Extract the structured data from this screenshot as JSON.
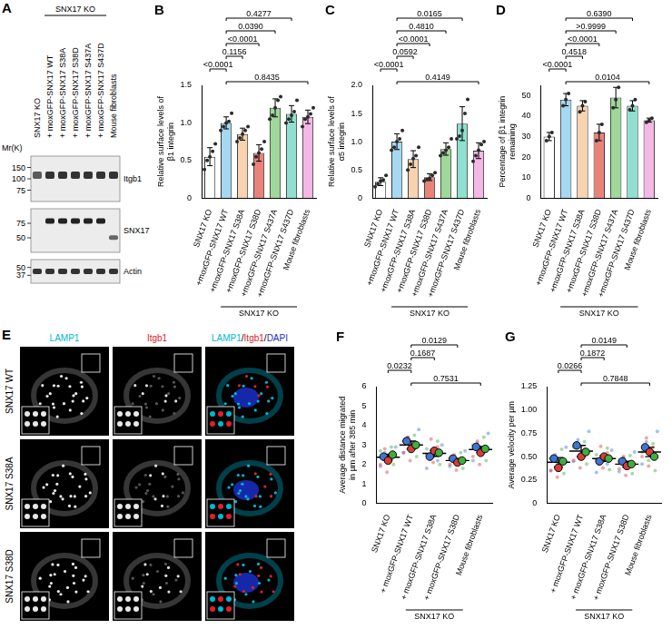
{
  "blot": {
    "panel": "A",
    "header": "SNX17 KO",
    "header_lanes": [
      1,
      5
    ],
    "lanes": [
      "SNX17 KO",
      "+ moxGFP-SNX17 WT",
      "+ moxGFP-SNX17 S38A",
      "+ moxGFP-SNX17 S38D",
      "+ moxGFP-SNX17 S437A",
      "+ moxGFP-SNX17 S437D",
      "Mouse fibroblasts"
    ],
    "mw_label": "Mr(K)",
    "rows": [
      {
        "label": "Itgb1",
        "markers": [
          150,
          100,
          75
        ]
      },
      {
        "label": "SNX17",
        "markers": [
          75,
          50
        ]
      },
      {
        "label": "Actin",
        "markers": [
          50,
          37
        ]
      }
    ]
  },
  "chart_data": [
    {
      "panel": "B",
      "type": "bar",
      "y_label": "Relative surface levels of β1 integrin",
      "categories": [
        "SNX17 KO",
        "+moxGFP-SNX17 WT",
        "+moxGFP-SNX17 S38A",
        "+moxGFP-SNX17 S38D",
        "+moxGFP-SNX17 S437A",
        "+moxGFP-SNX17 S437D",
        "Mouse fibroblasts"
      ],
      "colors": [
        "#ffffff",
        "#a6d8f2",
        "#f7d3b0",
        "#e8837a",
        "#9fd89a",
        "#8fe0cf",
        "#f3b8e6"
      ],
      "values": [
        0.55,
        1.0,
        0.85,
        0.6,
        1.2,
        1.12,
        1.08
      ],
      "error": [
        0.12,
        0.08,
        0.08,
        0.11,
        0.12,
        0.11,
        0.09
      ],
      "points": [
        [
          0.38,
          0.5,
          0.55,
          0.62,
          0.72
        ],
        [
          0.9,
          0.95,
          1.0,
          1.02,
          1.13
        ],
        [
          0.75,
          0.8,
          0.85,
          0.9,
          0.95
        ],
        [
          0.45,
          0.55,
          0.6,
          0.65,
          0.75
        ],
        [
          1.05,
          1.1,
          1.2,
          1.3,
          1.35
        ],
        [
          1.0,
          1.05,
          1.1,
          1.15,
          1.3
        ],
        [
          0.95,
          1.05,
          1.08,
          1.12,
          1.2
        ]
      ],
      "ylim": [
        0,
        1.5
      ],
      "yticks": [
        0,
        0.5,
        {
          "value": 1,
          "label": "1.0"
        },
        1.5
      ],
      "grid": false,
      "group": {
        "label": "SNX17 KO",
        "from": 1,
        "to": 5
      },
      "comparisons": [
        {
          "from": 1,
          "to": 6,
          "label": "0.8435"
        },
        {
          "from": 0,
          "to": 1,
          "label": "<0.0001"
        },
        {
          "from": 1,
          "to": 2,
          "label": "0.1156"
        },
        {
          "from": 1,
          "to": 3,
          "label": "<0.0001"
        },
        {
          "from": 1,
          "to": 4,
          "label": "0.0390"
        },
        {
          "from": 1,
          "to": 5,
          "label": "0.4277"
        }
      ]
    },
    {
      "panel": "C",
      "type": "bar",
      "y_label": "Relative surface levels of α5 integrin",
      "categories": [
        "SNX17 KO",
        "+moxGFP-SNX17 WT",
        "+moxGFP-SNX17 S38A",
        "+moxGFP-SNX17 S38D",
        "+moxGFP-SNX17 S437A",
        "+moxGFP-SNX17 S437D",
        "Mouse fibroblasts"
      ],
      "colors": [
        "#ffffff",
        "#a6d8f2",
        "#f7d3b0",
        "#e8837a",
        "#9fd89a",
        "#8fe0cf",
        "#f3b8e6"
      ],
      "values": [
        0.29,
        1.0,
        0.69,
        0.37,
        0.87,
        1.32,
        0.84
      ],
      "error": [
        0.07,
        0.14,
        0.15,
        0.06,
        0.11,
        0.3,
        0.14
      ],
      "points": [
        [
          0.2,
          0.25,
          0.3,
          0.32,
          0.4
        ],
        [
          0.85,
          0.9,
          1.0,
          1.05,
          1.2
        ],
        [
          0.5,
          0.6,
          0.7,
          0.75,
          0.9
        ],
        [
          0.3,
          0.33,
          0.35,
          0.4,
          0.45
        ],
        [
          0.75,
          0.8,
          0.85,
          0.9,
          1.05
        ],
        [
          1.05,
          1.1,
          1.2,
          1.5,
          1.75
        ],
        [
          0.65,
          0.75,
          0.85,
          0.95,
          1.0
        ]
      ],
      "ylim": [
        0,
        2
      ],
      "yticks": [
        0,
        0.5,
        {
          "value": 1,
          "label": "1.0"
        },
        1.5,
        {
          "value": 2,
          "label": "2.0"
        }
      ],
      "grid": false,
      "group": {
        "label": "SNX17 KO",
        "from": 1,
        "to": 5
      },
      "comparisons": [
        {
          "from": 1,
          "to": 6,
          "label": "0.4149"
        },
        {
          "from": 0,
          "to": 1,
          "label": "<0.0001"
        },
        {
          "from": 1,
          "to": 2,
          "label": "0.0592"
        },
        {
          "from": 1,
          "to": 3,
          "label": "<0.0001"
        },
        {
          "from": 1,
          "to": 4,
          "label": "0.4810"
        },
        {
          "from": 1,
          "to": 5,
          "label": "0.0165"
        }
      ]
    },
    {
      "panel": "D",
      "type": "bar",
      "y_label": "Percentage of β1 integrin remaining",
      "categories": [
        "SNX17 KO",
        "+moxGFP-SNX17 WT",
        "+moxGFP-SNX17 S38A",
        "+moxGFP-SNX17 S38D",
        "+moxGFP-SNX17 S437A",
        "+moxGFP-SNX17 S437D",
        "Mouse fibroblasts"
      ],
      "colors": [
        "#ffffff",
        "#a6d8f2",
        "#f7d3b0",
        "#e8837a",
        "#9fd89a",
        "#8fe0cf",
        "#f3b8e6"
      ],
      "values": [
        30,
        48,
        45,
        32,
        49,
        45,
        38
      ],
      "error": [
        2,
        3,
        2.5,
        4,
        5,
        2.5,
        1
      ],
      "points": [
        [
          28,
          30,
          32
        ],
        [
          45,
          48,
          51
        ],
        [
          42,
          45,
          47
        ],
        [
          28,
          32,
          36
        ],
        [
          44,
          48,
          54
        ],
        [
          43,
          45,
          48
        ],
        [
          37,
          38,
          39
        ]
      ],
      "ylim": [
        0,
        55
      ],
      "yticks": [
        0,
        10,
        20,
        30,
        40,
        50
      ],
      "grid": false,
      "group": {
        "label": "SNX17 KO",
        "from": 1,
        "to": 5
      },
      "comparisons": [
        {
          "from": 1,
          "to": 6,
          "label": "0.0104"
        },
        {
          "from": 0,
          "to": 1,
          "label": "<0.0001"
        },
        {
          "from": 1,
          "to": 2,
          "label": "0.4518"
        },
        {
          "from": 1,
          "to": 3,
          "label": "<0.0001"
        },
        {
          "from": 1,
          "to": 4,
          "label": ">0.9999"
        },
        {
          "from": 1,
          "to": 5,
          "label": "0.6390"
        }
      ]
    },
    {
      "panel": "F",
      "type": "scatter",
      "y_label": "Average distance migrated in µm after 385 min",
      "categories": [
        "SNX17 KO",
        "+ moxGFP-SNX17 WT",
        "+ moxGFP-SNX17 S38A",
        "+ moxGFP-SNX17 S38D",
        "Mouse fibroblasts"
      ],
      "series": [
        {
          "color": "#3f74d0",
          "cells": [
            [
              1.9,
              2.3,
              2.6,
              2.9
            ],
            [
              2.6,
              3.0,
              3.4,
              3.8
            ],
            [
              1.8,
              2.2,
              2.6,
              3.0
            ],
            [
              1.9,
              2.2,
              2.4,
              2.7
            ],
            [
              2.2,
              2.7,
              3.1,
              3.6
            ]
          ],
          "means": [
            2.4,
            3.2,
            2.4,
            2.3,
            2.9
          ]
        },
        {
          "color": "#dc3b3b",
          "cells": [
            [
              1.6,
              2.0,
              2.4,
              2.8
            ],
            [
              2.2,
              2.6,
              3.0,
              3.4
            ],
            [
              2.1,
              2.5,
              2.9,
              3.3
            ],
            [
              1.7,
              2.0,
              2.2,
              2.5
            ],
            [
              2.0,
              2.4,
              2.8,
              3.2
            ]
          ],
          "means": [
            2.2,
            2.8,
            2.7,
            2.1,
            2.6
          ]
        },
        {
          "color": "#3fae3f",
          "cells": [
            [
              2.0,
              2.4,
              2.7,
              2.9
            ],
            [
              2.4,
              2.9,
              3.2,
              3.5
            ],
            [
              2.0,
              2.4,
              2.8,
              3.2
            ],
            [
              1.8,
              2.1,
              2.3,
              2.6
            ],
            [
              2.2,
              2.6,
              3.0,
              3.4
            ]
          ],
          "means": [
            2.5,
            3.0,
            2.6,
            2.2,
            2.8
          ]
        }
      ],
      "mean": [
        2.37,
        3.0,
        2.57,
        2.2,
        2.77
      ],
      "sd": [
        0.15,
        0.2,
        0.15,
        0.1,
        0.15
      ],
      "ylim": [
        0,
        6
      ],
      "yticks": [
        0,
        1,
        2,
        3,
        4,
        5,
        6
      ],
      "grid": false,
      "group": {
        "label": "SNX17 KO",
        "from": 1,
        "to": 3
      },
      "comparisons": [
        {
          "from": 1,
          "to": 4,
          "label": "0.7531"
        },
        {
          "from": 0,
          "to": 1,
          "label": "0.0232"
        },
        {
          "from": 1,
          "to": 2,
          "label": "0.1687"
        },
        {
          "from": 1,
          "to": 3,
          "label": "0.0129"
        }
      ]
    },
    {
      "panel": "G",
      "type": "scatter",
      "y_label": "Average velocity per µm",
      "categories": [
        "SNX17 KO",
        "+ moxGFP-SNX17 WT",
        "+ moxGFP-SNX17 S38A",
        "+ moxGFP-SNX17 S38D",
        "Mouse fibroblasts"
      ],
      "series": [
        {
          "color": "#3f74d0",
          "cells": [
            [
              0.35,
              0.45,
              0.52,
              0.6
            ],
            [
              0.45,
              0.58,
              0.68,
              0.77
            ],
            [
              0.33,
              0.42,
              0.48,
              0.57
            ],
            [
              0.34,
              0.42,
              0.49,
              0.55
            ],
            [
              0.42,
              0.55,
              0.66,
              0.77
            ]
          ],
          "means": [
            0.48,
            0.62,
            0.45,
            0.45,
            0.6
          ]
        },
        {
          "color": "#dc3b3b",
          "cells": [
            [
              0.28,
              0.35,
              0.42,
              0.47
            ],
            [
              0.38,
              0.46,
              0.54,
              0.62
            ],
            [
              0.38,
              0.47,
              0.54,
              0.61
            ],
            [
              0.3,
              0.37,
              0.43,
              0.5
            ],
            [
              0.4,
              0.5,
              0.6,
              0.7
            ]
          ],
          "means": [
            0.38,
            0.5,
            0.5,
            0.4,
            0.55
          ]
        },
        {
          "color": "#3fae3f",
          "cells": [
            [
              0.32,
              0.42,
              0.48,
              0.58
            ],
            [
              0.42,
              0.52,
              0.6,
              0.66
            ],
            [
              0.36,
              0.45,
              0.52,
              0.59
            ],
            [
              0.32,
              0.4,
              0.45,
              0.51
            ],
            [
              0.35,
              0.46,
              0.55,
              0.64
            ]
          ],
          "means": [
            0.45,
            0.55,
            0.48,
            0.42,
            0.5
          ]
        }
      ],
      "mean": [
        0.44,
        0.56,
        0.48,
        0.42,
        0.55
      ],
      "sd": [
        0.05,
        0.06,
        0.03,
        0.03,
        0.05
      ],
      "ylim": [
        0,
        1.25
      ],
      "yticks": [
        0,
        0.25,
        {
          "value": 0.5,
          "label": "0.50"
        },
        0.75,
        {
          "value": 1,
          "label": "1.00"
        },
        1.25
      ],
      "grid": false,
      "group": {
        "label": "SNX17 KO",
        "from": 1,
        "to": 3
      },
      "comparisons": [
        {
          "from": 1,
          "to": 4,
          "label": "0.7848"
        },
        {
          "from": 0,
          "to": 1,
          "label": "0.0266"
        },
        {
          "from": 1,
          "to": 2,
          "label": "0.1872"
        },
        {
          "from": 1,
          "to": 3,
          "label": "0.0149"
        }
      ]
    }
  ],
  "image": {
    "panel": "E",
    "rows": [
      "SNX17 WT",
      "SNX17 S38A",
      "SNX17 S38D"
    ],
    "columns": [
      [
        {
          "text": "LAMP1",
          "color": "#00b8d4"
        }
      ],
      [
        {
          "text": "Itgb1",
          "color": "#e0202a"
        }
      ],
      [
        {
          "text": "LAMP1",
          "color": "#00b8d4"
        },
        {
          "text": "/",
          "color": "#000000"
        },
        {
          "text": "Itgb1",
          "color": "#e0202a"
        },
        {
          "text": "/",
          "color": "#000000"
        },
        {
          "text": "DAPI",
          "color": "#1a2fc8"
        }
      ]
    ]
  }
}
